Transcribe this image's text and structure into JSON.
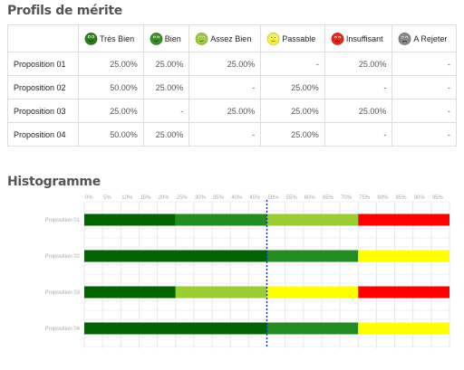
{
  "profils": {
    "title": "Profils de mérite",
    "columns": [
      {
        "label": "Très Bien",
        "color": "#2e7d1e"
      },
      {
        "label": "Bien",
        "color": "#3d8f24"
      },
      {
        "label": "Assez Bien",
        "color": "#9ccc3c"
      },
      {
        "label": "Passable",
        "color": "#f4f23a"
      },
      {
        "label": "Insuffisant",
        "color": "#e52a1a"
      },
      {
        "label": "A Rejeter",
        "color": "#8a8a8a"
      }
    ],
    "rows": [
      {
        "label": "Proposition 01",
        "cells": [
          "25.00%",
          "25.00%",
          "25.00%",
          "-",
          "25.00%",
          "-"
        ]
      },
      {
        "label": "Proposition 02",
        "cells": [
          "50.00%",
          "25.00%",
          "-",
          "25.00%",
          "-",
          "-"
        ]
      },
      {
        "label": "Proposition 03",
        "cells": [
          "25.00%",
          "-",
          "25.00%",
          "25.00%",
          "25.00%",
          "-"
        ]
      },
      {
        "label": "Proposition 04",
        "cells": [
          "50.00%",
          "25.00%",
          "-",
          "25.00%",
          "-",
          "-"
        ]
      }
    ]
  },
  "histogramme": {
    "title": "Histogramme",
    "chart_data": {
      "type": "bar",
      "orientation": "horizontal",
      "stacked": true,
      "categories": [
        "Proposition 01",
        "Proposition 02",
        "Proposition 03",
        "Proposition 04"
      ],
      "x_ticks": [
        "0%",
        "5%",
        "10%",
        "15%",
        "20%",
        "25%",
        "30%",
        "35%",
        "40%",
        "45%",
        "50%",
        "55%",
        "60%",
        "65%",
        "70%",
        "75%",
        "80%",
        "85%",
        "90%",
        "95%"
      ],
      "xlim": [
        0,
        100
      ],
      "median_line": 50,
      "grid": true,
      "series": [
        {
          "name": "Très Bien",
          "color": "#006400",
          "values": [
            25,
            50,
            25,
            50
          ]
        },
        {
          "name": "Bien",
          "color": "#228b22",
          "values": [
            25,
            25,
            0,
            25
          ]
        },
        {
          "name": "Assez Bien",
          "color": "#9acd32",
          "values": [
            25,
            0,
            25,
            0
          ]
        },
        {
          "name": "Passable",
          "color": "#ffff00",
          "values": [
            0,
            25,
            25,
            25
          ]
        },
        {
          "name": "Insuffisant",
          "color": "#ff0000",
          "values": [
            25,
            0,
            25,
            0
          ]
        },
        {
          "name": "A Rejeter",
          "color": "#808080",
          "values": [
            0,
            0,
            0,
            0
          ]
        }
      ]
    }
  }
}
